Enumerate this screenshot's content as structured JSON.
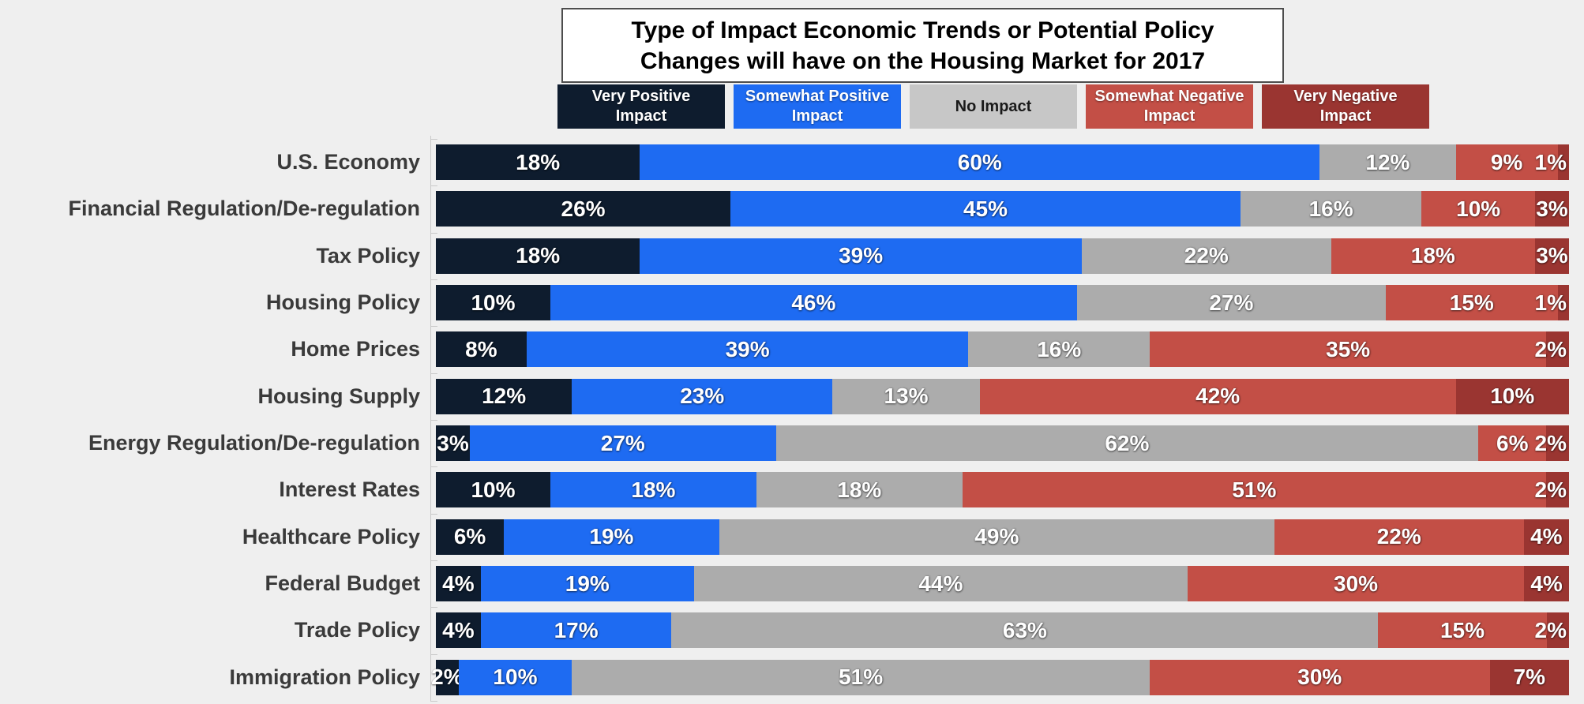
{
  "chart_data": {
    "type": "bar",
    "orientation": "horizontal-stacked",
    "title": "Type of Impact Economic Trends or Potential Policy Changes will have on the Housing Market for 2017",
    "title_lines": [
      "Type of Impact Economic Trends or Potential Policy",
      "Changes will have on the Housing Market for 2017"
    ],
    "value_suffix": "%",
    "xlim": [
      0,
      100
    ],
    "grid": false,
    "legend_position": "top",
    "background_color": "#efefef",
    "categories": [
      "U.S. Economy",
      "Financial Regulation/De-regulation",
      "Tax Policy",
      "Housing Policy",
      "Home Prices",
      "Housing Supply",
      "Energy Regulation/De-regulation",
      "Interest Rates",
      "Healthcare Policy",
      "Federal Budget",
      "Trade Policy",
      "Immigration Policy"
    ],
    "series": [
      {
        "name": "Very Positive Impact",
        "color": "#0e1c2e",
        "legend_text": "light",
        "values": [
          18,
          26,
          18,
          10,
          8,
          12,
          3,
          10,
          6,
          4,
          4,
          2
        ]
      },
      {
        "name": "Somewhat Positive Impact",
        "color": "#1e6bf2",
        "legend_text": "light",
        "values": [
          60,
          45,
          39,
          46,
          39,
          23,
          27,
          18,
          19,
          19,
          17,
          10
        ]
      },
      {
        "name": "No Impact",
        "color": "#acacac",
        "legend_color": "#c7c7c7",
        "legend_text": "dark",
        "values": [
          12,
          16,
          22,
          27,
          16,
          13,
          62,
          18,
          49,
          44,
          63,
          51
        ]
      },
      {
        "name": "Somewhat Negative Impact",
        "color": "#c34f46",
        "legend_text": "light",
        "values": [
          9,
          10,
          18,
          15,
          35,
          42,
          6,
          51,
          22,
          30,
          15,
          30
        ]
      },
      {
        "name": "Very Negative Impact",
        "color": "#9a3531",
        "legend_text": "light",
        "values": [
          1,
          3,
          3,
          1,
          2,
          10,
          2,
          2,
          4,
          4,
          2,
          7
        ]
      }
    ]
  }
}
